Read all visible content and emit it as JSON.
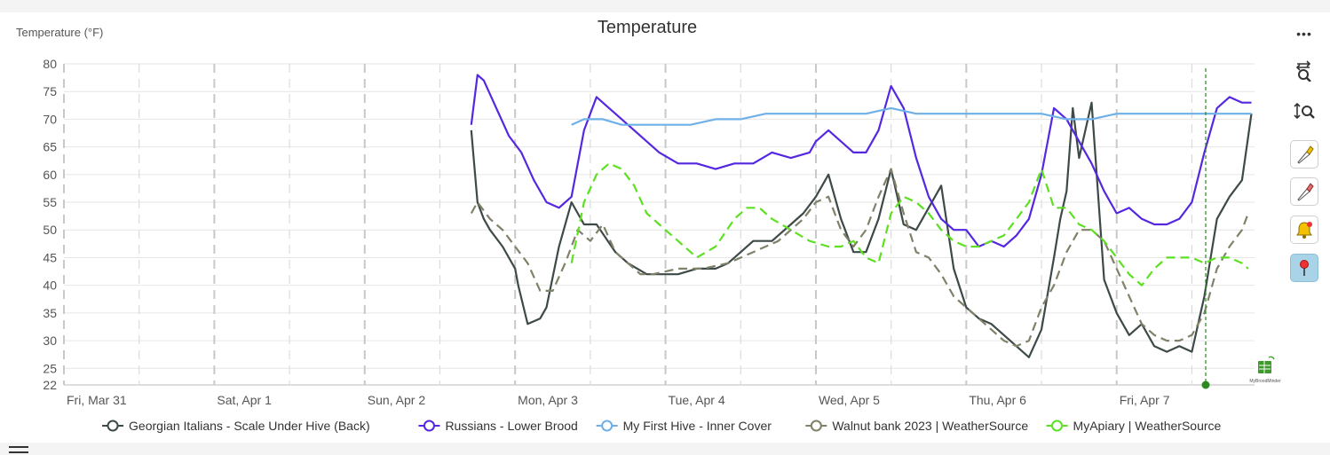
{
  "chart_data": {
    "type": "line",
    "title": "Temperature",
    "ylabel": "Temperature (°F)",
    "ylim": [
      22,
      80
    ],
    "y_ticks": [
      22,
      25,
      30,
      35,
      40,
      45,
      50,
      55,
      60,
      65,
      70,
      75,
      80
    ],
    "x_start": "2023-03-31T00:00",
    "x_end": "2023-04-07T22:00",
    "x_ticks": [
      {
        "label": "Fri, Mar 31",
        "t": "2023-03-31T00:00"
      },
      {
        "label": "Sat, Apr 1",
        "t": "2023-04-01T00:00"
      },
      {
        "label": "Sun, Apr 2",
        "t": "2023-04-02T00:00"
      },
      {
        "label": "Mon, Apr 3",
        "t": "2023-04-03T00:00"
      },
      {
        "label": "Tue, Apr 4",
        "t": "2023-04-04T00:00"
      },
      {
        "label": "Wed, Apr 5",
        "t": "2023-04-05T00:00"
      },
      {
        "label": "Thu, Apr 6",
        "t": "2023-04-06T00:00"
      },
      {
        "label": "Fri, Apr 7",
        "t": "2023-04-07T00:00"
      }
    ],
    "legend_position": "bottom",
    "series": [
      {
        "name": "Georgian Italians  - Scale Under Hive (Back)",
        "color": "#3d4a47",
        "dash": "solid",
        "x": [
          "2023-04-02T17:00",
          "2023-04-02T18:00",
          "2023-04-02T19:00",
          "2023-04-02T20:00",
          "2023-04-02T22:00",
          "2023-04-03T00:00",
          "2023-04-03T00:30",
          "2023-04-03T02:00",
          "2023-04-03T04:00",
          "2023-04-03T05:00",
          "2023-04-03T07:00",
          "2023-04-03T09:00",
          "2023-04-03T11:00",
          "2023-04-03T13:00",
          "2023-04-03T16:00",
          "2023-04-03T18:00",
          "2023-04-03T21:00",
          "2023-04-04T02:00",
          "2023-04-04T05:00",
          "2023-04-04T08:00",
          "2023-04-04T10:00",
          "2023-04-04T12:00",
          "2023-04-04T14:00",
          "2023-04-04T17:00",
          "2023-04-04T20:00",
          "2023-04-04T22:00",
          "2023-04-05T00:00",
          "2023-04-05T02:00",
          "2023-04-05T04:00",
          "2023-04-05T06:00",
          "2023-04-05T08:00",
          "2023-04-05T10:00",
          "2023-04-05T12:00",
          "2023-04-05T14:00",
          "2023-04-05T16:00",
          "2023-04-05T18:00",
          "2023-04-05T20:00",
          "2023-04-05T22:00",
          "2023-04-06T00:00",
          "2023-04-06T02:00",
          "2023-04-06T04:00",
          "2023-04-06T06:00",
          "2023-04-06T08:00",
          "2023-04-06T10:00",
          "2023-04-06T12:00",
          "2023-04-06T14:00",
          "2023-04-06T15:00",
          "2023-04-06T16:00",
          "2023-04-06T17:00",
          "2023-04-06T18:00",
          "2023-04-06T20:00",
          "2023-04-06T22:00",
          "2023-04-07T00:00",
          "2023-04-07T02:00",
          "2023-04-07T04:00",
          "2023-04-07T06:00",
          "2023-04-07T08:00",
          "2023-04-07T10:00",
          "2023-04-07T12:00",
          "2023-04-07T14:00",
          "2023-04-07T16:00",
          "2023-04-07T18:00",
          "2023-04-07T20:00",
          "2023-04-07T21:30"
        ],
        "y": [
          68,
          55,
          52,
          50,
          47,
          43,
          40,
          33,
          34,
          36,
          47,
          55,
          51,
          51,
          46,
          44,
          42,
          42,
          43,
          43,
          44,
          46,
          48,
          48,
          51,
          53,
          56,
          60,
          52,
          46,
          46,
          52,
          61,
          51,
          50,
          54,
          58,
          43,
          36,
          34,
          33,
          31,
          29,
          27,
          32,
          45,
          52,
          57,
          72,
          63,
          73,
          41,
          35,
          31,
          33,
          29,
          28,
          29,
          28,
          38,
          52,
          56,
          59,
          71
        ]
      },
      {
        "name": "Russians - Lower Brood",
        "color": "#5527e0",
        "dash": "solid",
        "x": [
          "2023-04-02T17:00",
          "2023-04-02T18:00",
          "2023-04-02T19:00",
          "2023-04-02T21:00",
          "2023-04-02T23:00",
          "2023-04-03T01:00",
          "2023-04-03T03:00",
          "2023-04-03T05:00",
          "2023-04-03T07:00",
          "2023-04-03T09:00",
          "2023-04-03T11:00",
          "2023-04-03T13:00",
          "2023-04-03T15:00",
          "2023-04-03T17:00",
          "2023-04-03T19:00",
          "2023-04-03T21:00",
          "2023-04-03T23:00",
          "2023-04-04T02:00",
          "2023-04-04T05:00",
          "2023-04-04T08:00",
          "2023-04-04T11:00",
          "2023-04-04T14:00",
          "2023-04-04T17:00",
          "2023-04-04T20:00",
          "2023-04-04T23:00",
          "2023-04-05T00:00",
          "2023-04-05T02:00",
          "2023-04-05T04:00",
          "2023-04-05T06:00",
          "2023-04-05T08:00",
          "2023-04-05T10:00",
          "2023-04-05T12:00",
          "2023-04-05T14:00",
          "2023-04-05T16:00",
          "2023-04-05T18:00",
          "2023-04-05T20:00",
          "2023-04-05T22:00",
          "2023-04-06T00:00",
          "2023-04-06T02:00",
          "2023-04-06T04:00",
          "2023-04-06T06:00",
          "2023-04-06T08:00",
          "2023-04-06T10:00",
          "2023-04-06T12:00",
          "2023-04-06T14:00",
          "2023-04-06T16:00",
          "2023-04-06T18:00",
          "2023-04-06T20:00",
          "2023-04-06T22:00",
          "2023-04-07T00:00",
          "2023-04-07T02:00",
          "2023-04-07T04:00",
          "2023-04-07T06:00",
          "2023-04-07T08:00",
          "2023-04-07T10:00",
          "2023-04-07T12:00",
          "2023-04-07T14:00",
          "2023-04-07T16:00",
          "2023-04-07T18:00",
          "2023-04-07T20:00",
          "2023-04-07T21:30"
        ],
        "y": [
          69,
          78,
          77,
          72,
          67,
          64,
          59,
          55,
          54,
          56,
          68,
          74,
          72,
          70,
          68,
          66,
          64,
          62,
          62,
          61,
          62,
          62,
          64,
          63,
          64,
          66,
          68,
          66,
          64,
          64,
          68,
          76,
          72,
          63,
          56,
          52,
          50,
          50,
          47,
          48,
          47,
          49,
          52,
          60,
          72,
          70,
          66,
          62,
          57,
          53,
          54,
          52,
          51,
          51,
          52,
          55,
          64,
          72,
          74,
          73,
          73
        ]
      },
      {
        "name": "My First Hive - Inner Cover",
        "color": "#6fb0e6",
        "dash": "solid",
        "x": [
          "2023-04-03T09:00",
          "2023-04-03T11:00",
          "2023-04-03T14:00",
          "2023-04-03T17:00",
          "2023-04-03T20:00",
          "2023-04-04T00:00",
          "2023-04-04T04:00",
          "2023-04-04T08:00",
          "2023-04-04T12:00",
          "2023-04-04T16:00",
          "2023-04-04T20:00",
          "2023-04-05T00:00",
          "2023-04-05T04:00",
          "2023-04-05T08:00",
          "2023-04-05T12:00",
          "2023-04-05T16:00",
          "2023-04-05T20:00",
          "2023-04-06T00:00",
          "2023-04-06T04:00",
          "2023-04-06T08:00",
          "2023-04-06T12:00",
          "2023-04-06T16:00",
          "2023-04-06T20:00",
          "2023-04-07T00:00",
          "2023-04-07T04:00",
          "2023-04-07T08:00",
          "2023-04-07T12:00",
          "2023-04-07T16:00",
          "2023-04-07T20:00",
          "2023-04-07T21:30"
        ],
        "y": [
          69,
          70,
          70,
          69,
          69,
          69,
          69,
          70,
          70,
          71,
          71,
          71,
          71,
          71,
          72,
          71,
          71,
          71,
          71,
          71,
          71,
          70,
          70,
          71,
          71,
          71,
          71,
          71,
          71,
          71
        ]
      },
      {
        "name": "Walnut bank 2023 | WeatherSource",
        "color": "#7f8168",
        "dash": "dashed",
        "x": [
          "2023-04-02T17:00",
          "2023-04-02T18:00",
          "2023-04-02T20:00",
          "2023-04-02T22:00",
          "2023-04-03T00:00",
          "2023-04-03T02:00",
          "2023-04-03T04:00",
          "2023-04-03T06:00",
          "2023-04-03T08:00",
          "2023-04-03T10:00",
          "2023-04-03T12:00",
          "2023-04-03T14:00",
          "2023-04-03T16:00",
          "2023-04-03T18:00",
          "2023-04-03T20:00",
          "2023-04-03T22:00",
          "2023-04-04T02:00",
          "2023-04-04T06:00",
          "2023-04-04T10:00",
          "2023-04-04T14:00",
          "2023-04-04T18:00",
          "2023-04-04T22:00",
          "2023-04-05T00:00",
          "2023-04-05T02:00",
          "2023-04-05T04:00",
          "2023-04-05T06:00",
          "2023-04-05T08:00",
          "2023-04-05T10:00",
          "2023-04-05T12:00",
          "2023-04-05T14:00",
          "2023-04-05T16:00",
          "2023-04-05T18:00",
          "2023-04-05T20:00",
          "2023-04-05T22:00",
          "2023-04-06T00:00",
          "2023-04-06T02:00",
          "2023-04-06T04:00",
          "2023-04-06T06:00",
          "2023-04-06T08:00",
          "2023-04-06T10:00",
          "2023-04-06T12:00",
          "2023-04-06T14:00",
          "2023-04-06T16:00",
          "2023-04-06T18:00",
          "2023-04-06T20:00",
          "2023-04-06T22:00",
          "2023-04-07T00:00",
          "2023-04-07T02:00",
          "2023-04-07T04:00",
          "2023-04-07T06:00",
          "2023-04-07T08:00",
          "2023-04-07T10:00",
          "2023-04-07T12:00",
          "2023-04-07T14:00",
          "2023-04-07T16:00",
          "2023-04-07T18:00",
          "2023-04-07T20:00",
          "2023-04-07T21:00"
        ],
        "y": [
          53,
          55,
          52,
          50,
          47,
          44,
          39,
          39,
          44,
          50,
          48,
          51,
          46,
          44,
          42,
          42,
          43,
          43,
          44,
          46,
          48,
          52,
          55,
          56,
          50,
          47,
          50,
          56,
          61,
          53,
          46,
          45,
          42,
          38,
          36,
          34,
          32,
          30,
          29,
          30,
          36,
          40,
          46,
          50,
          50,
          48,
          43,
          38,
          33,
          31,
          30,
          30,
          31,
          35,
          43,
          47,
          50,
          53
        ]
      },
      {
        "name": "MyApiary | WeatherSource",
        "color": "#5de021",
        "dash": "dashed",
        "x": [
          "2023-04-03T09:00",
          "2023-04-03T11:00",
          "2023-04-03T13:00",
          "2023-04-03T15:00",
          "2023-04-03T17:00",
          "2023-04-03T19:00",
          "2023-04-03T21:00",
          "2023-04-03T23:00",
          "2023-04-04T02:00",
          "2023-04-04T05:00",
          "2023-04-04T08:00",
          "2023-04-04T11:00",
          "2023-04-04T13:00",
          "2023-04-04T15:00",
          "2023-04-04T17:00",
          "2023-04-04T20:00",
          "2023-04-04T23:00",
          "2023-04-05T02:00",
          "2023-04-05T04:00",
          "2023-04-05T06:00",
          "2023-04-05T08:00",
          "2023-04-05T10:00",
          "2023-04-05T12:00",
          "2023-04-05T14:00",
          "2023-04-05T16:00",
          "2023-04-05T18:00",
          "2023-04-05T20:00",
          "2023-04-05T22:00",
          "2023-04-06T00:00",
          "2023-04-06T02:00",
          "2023-04-06T04:00",
          "2023-04-06T06:00",
          "2023-04-06T08:00",
          "2023-04-06T10:00",
          "2023-04-06T12:00",
          "2023-04-06T14:00",
          "2023-04-06T16:00",
          "2023-04-06T18:00",
          "2023-04-06T20:00",
          "2023-04-06T22:00",
          "2023-04-07T00:00",
          "2023-04-07T02:00",
          "2023-04-07T04:00",
          "2023-04-07T06:00",
          "2023-04-07T08:00",
          "2023-04-07T10:00",
          "2023-04-07T12:00",
          "2023-04-07T14:00",
          "2023-04-07T16:00",
          "2023-04-07T18:00",
          "2023-04-07T20:00",
          "2023-04-07T21:00"
        ],
        "y": [
          44,
          55,
          60,
          62,
          61,
          58,
          53,
          51,
          48,
          45,
          47,
          52,
          54,
          54,
          52,
          50,
          48,
          47,
          47,
          48,
          45,
          44,
          53,
          56,
          55,
          53,
          50,
          48,
          47,
          47,
          48,
          49,
          52,
          55,
          61,
          54,
          54,
          51,
          50,
          48,
          45,
          42,
          40,
          43,
          45,
          45,
          45,
          44,
          45,
          45,
          44,
          43
        ]
      }
    ]
  },
  "toolbar": {
    "menu_glyph": "•••",
    "zoom_x_icon": "zoom-x-icon",
    "zoom_y_icon": "zoom-y-icon",
    "marker_yellow_icon": "marker-yellow-icon",
    "marker_red_icon": "marker-red-icon",
    "alert_bell_icon": "alert-bell-icon",
    "pin_icon": "pin-icon",
    "accent_active": "#a9d4e8"
  },
  "logo_text": "MyBroodMinder"
}
